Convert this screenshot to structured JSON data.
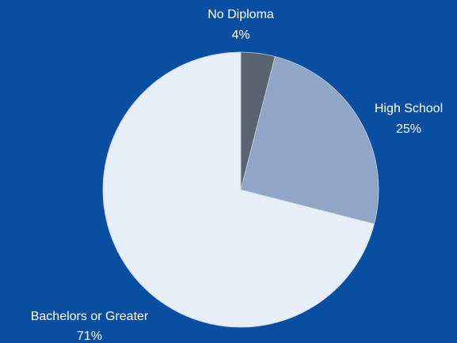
{
  "chart_data": {
    "type": "pie",
    "slices": [
      {
        "label": "No Diploma",
        "value": 4,
        "value_label": "4%",
        "color": "#5a6470"
      },
      {
        "label": "High School",
        "value": 25,
        "value_label": "25%",
        "color": "#8fa6c7"
      },
      {
        "label": "Bachelors or Greater",
        "value": 71,
        "value_label": "71%",
        "color": "#e8eef8"
      }
    ],
    "legend": "none"
  },
  "colors": {
    "background": "#0a4ea2",
    "slice_edge": "#c4cedf",
    "label_text": "#ffffff"
  }
}
